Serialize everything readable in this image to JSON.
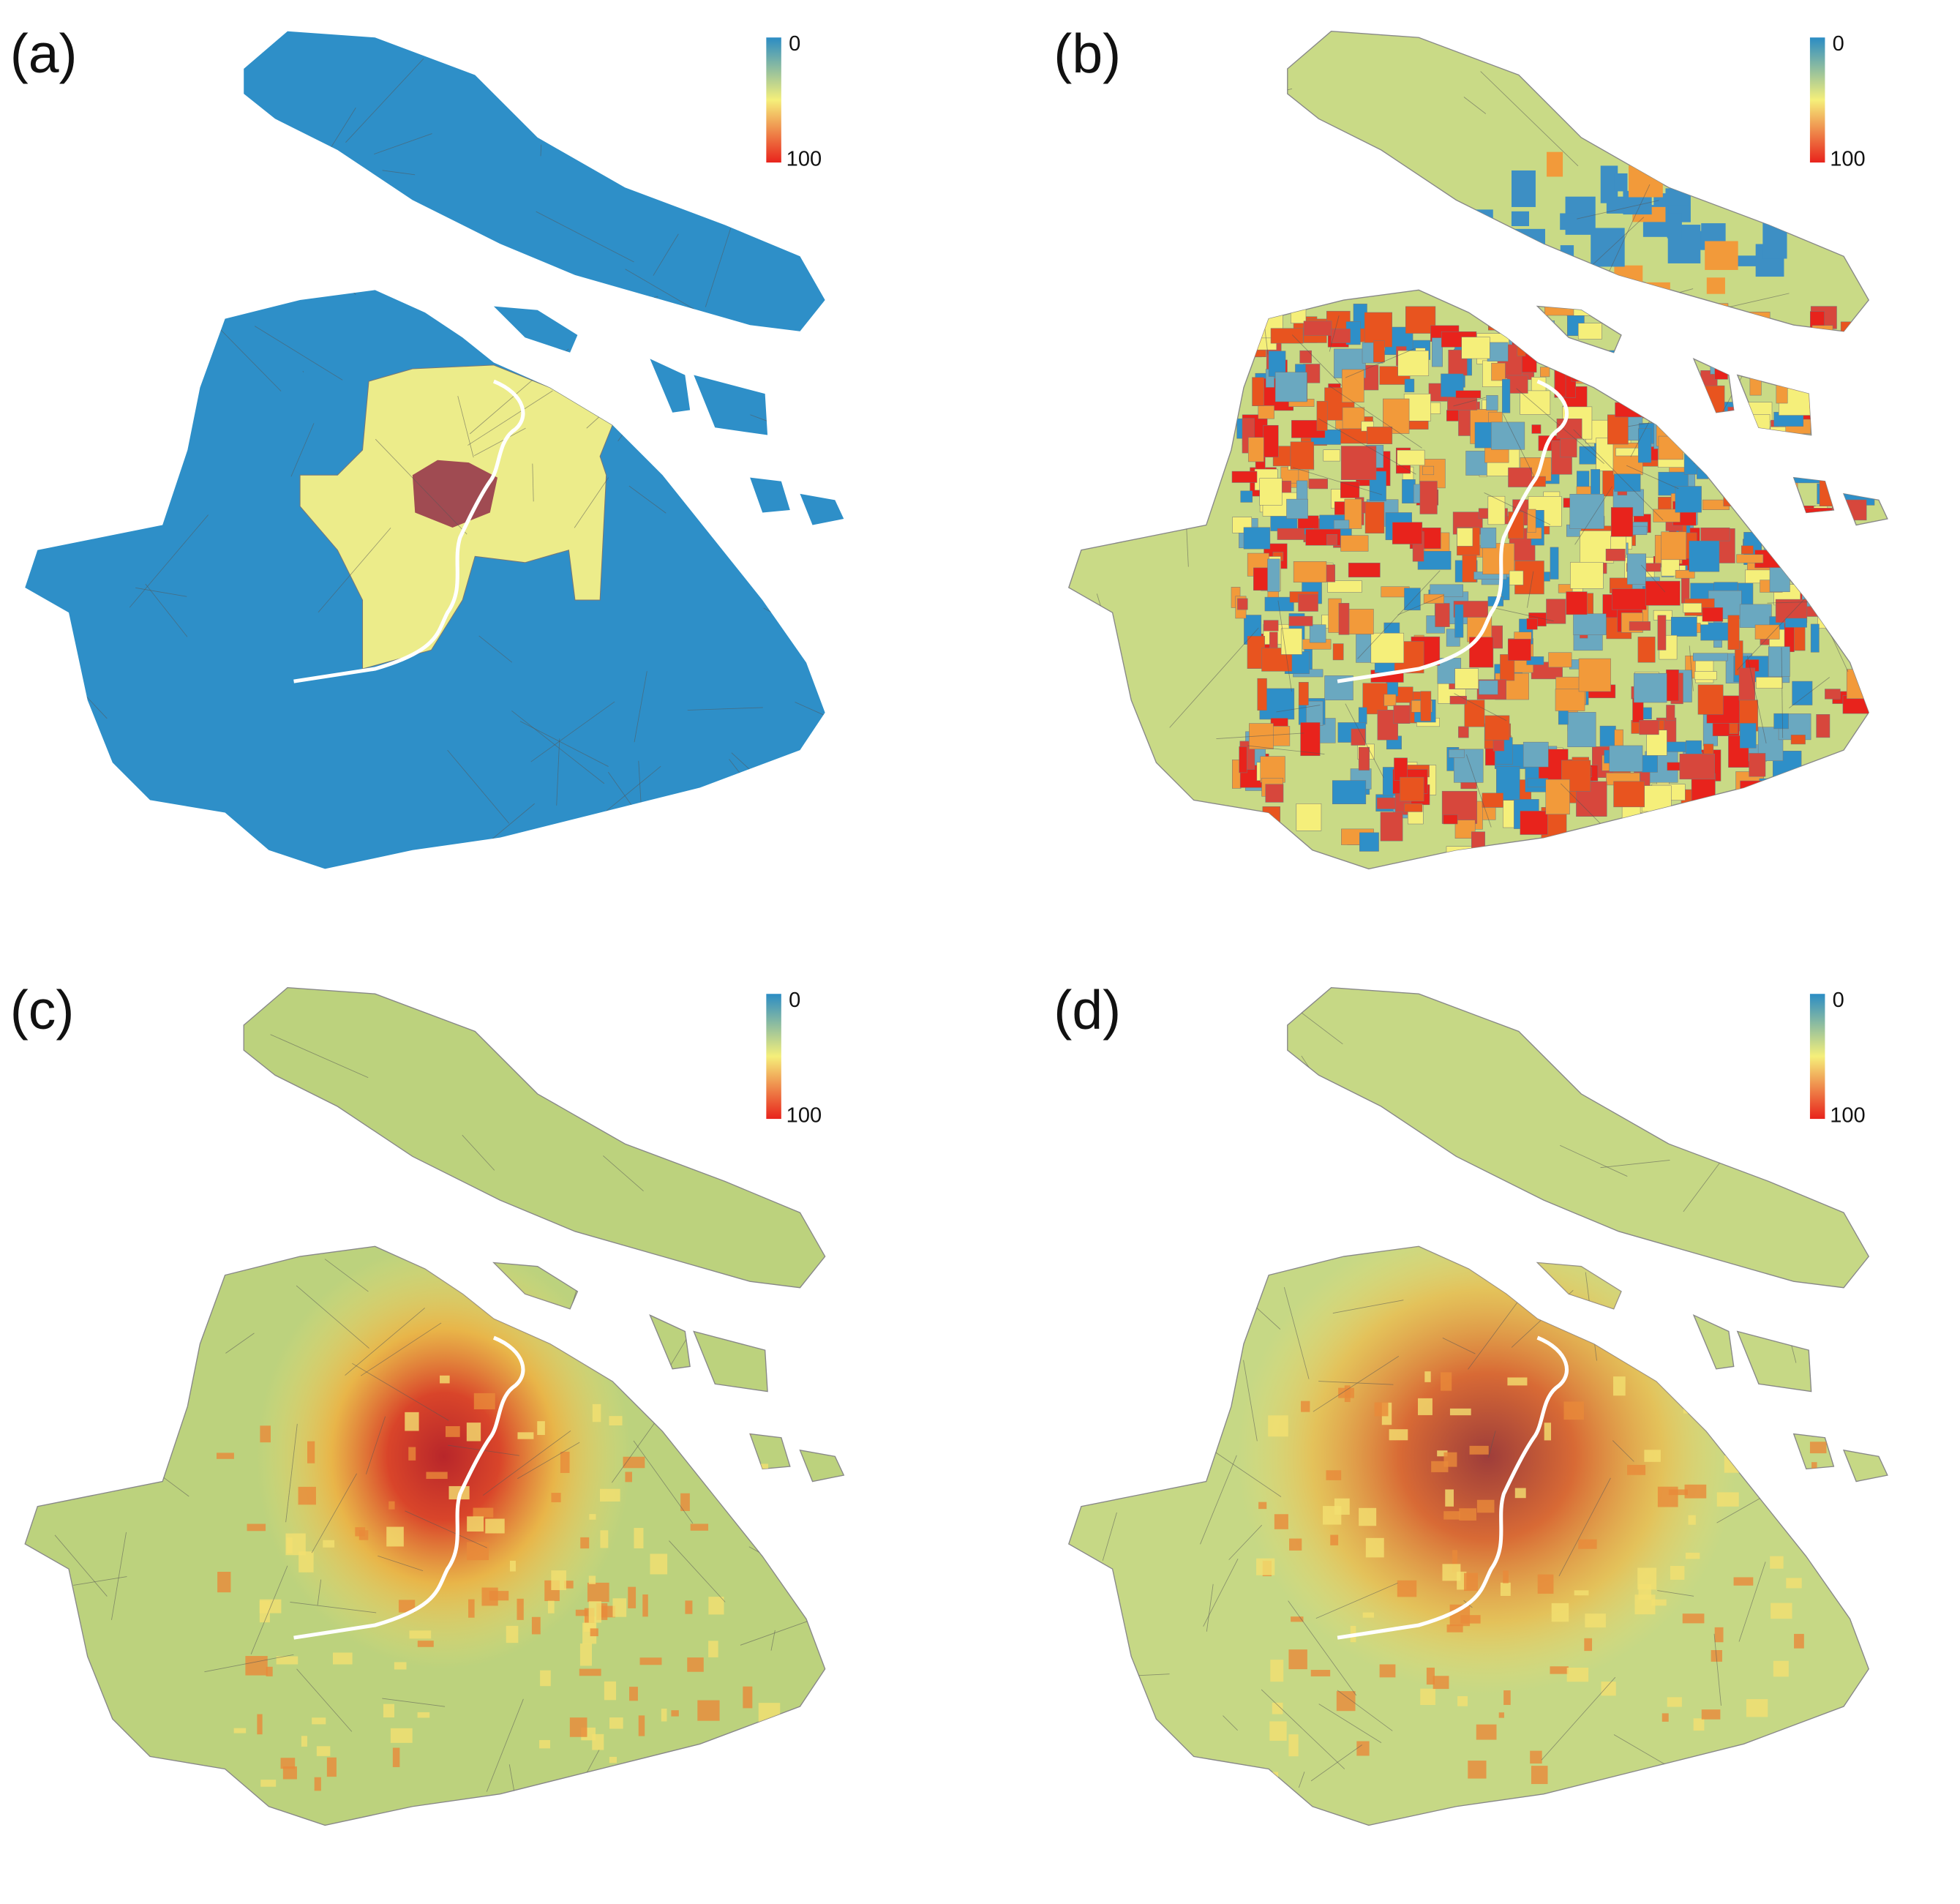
{
  "panels": [
    {
      "label": "(a)",
      "legend": {
        "min": 0,
        "max": 100
      }
    },
    {
      "label": "(b)",
      "legend": {
        "min": 0,
        "max": 100
      }
    },
    {
      "label": "(c)",
      "legend": {
        "min": 0,
        "max": 100
      }
    },
    {
      "label": "(d)",
      "legend": {
        "min": 0,
        "max": 100
      }
    }
  ]
}
